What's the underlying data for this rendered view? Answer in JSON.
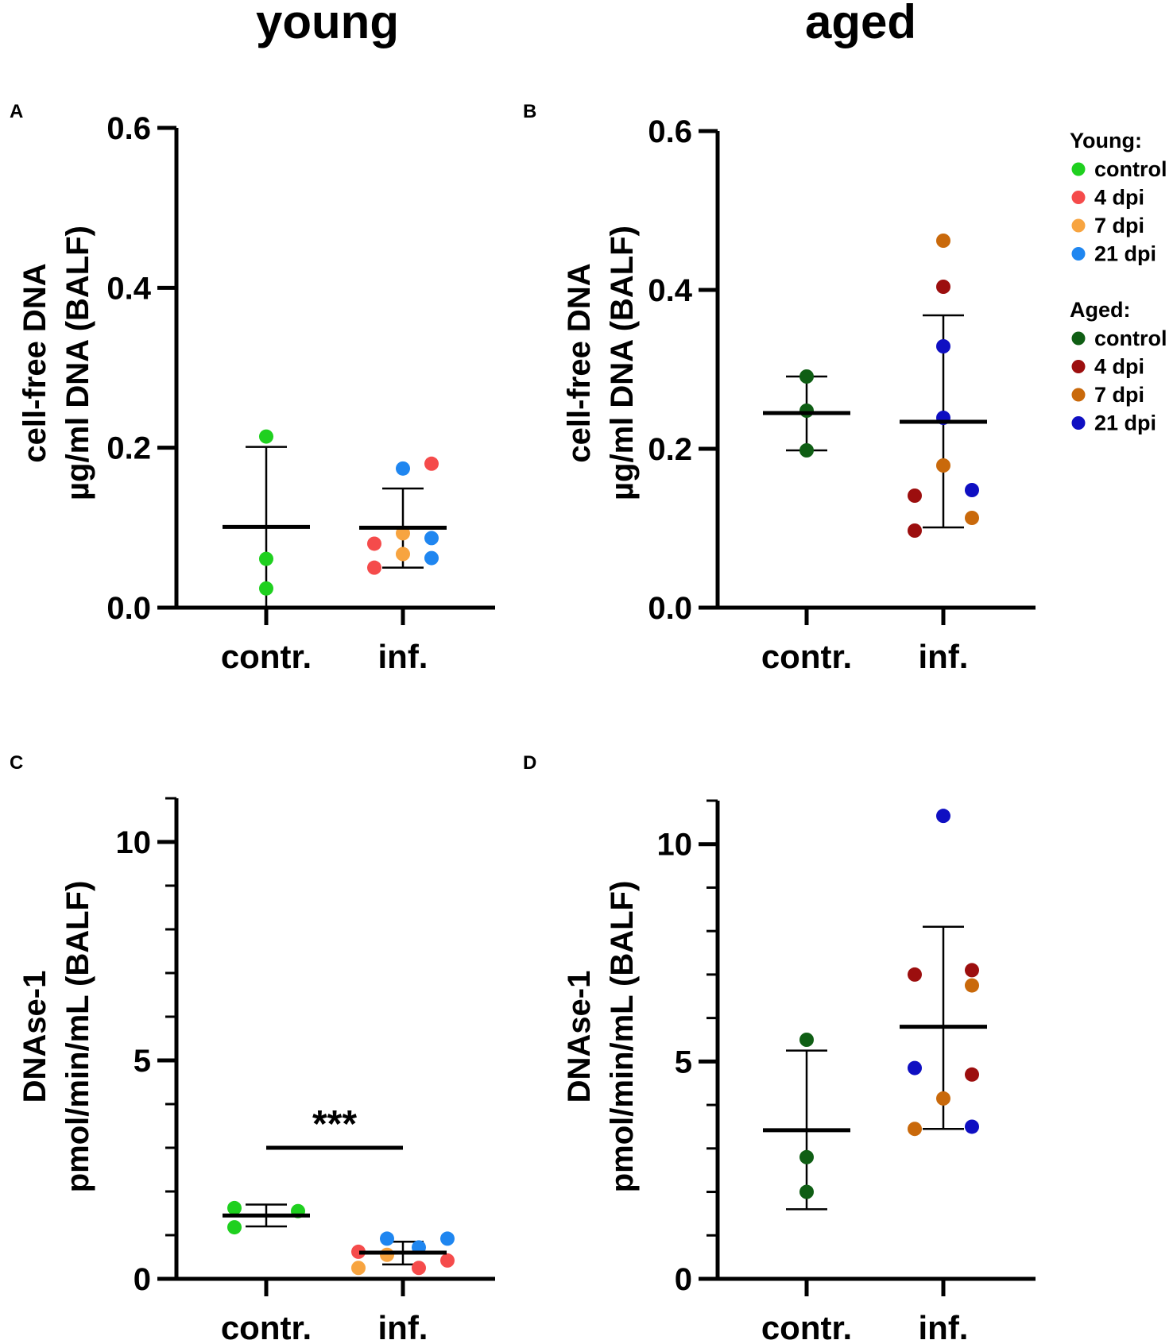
{
  "column_titles": {
    "young": "young",
    "aged": "aged"
  },
  "colors": {
    "young_control": "#1fd01f",
    "young_4dpi": "#f54b4b",
    "young_7dpi": "#f7a440",
    "young_21dpi": "#1f86f0",
    "aged_control": "#0f5e14",
    "aged_4dpi": "#9c0e0e",
    "aged_7dpi": "#c9690b",
    "aged_21dpi": "#0f0fc2",
    "axis": "#000000"
  },
  "legend": {
    "young_title": "Young:",
    "young_items": [
      {
        "label": "control",
        "color_key": "young_control"
      },
      {
        "label": "4 dpi",
        "color_key": "young_4dpi"
      },
      {
        "label": "7 dpi",
        "color_key": "young_7dpi"
      },
      {
        "label": "21 dpi",
        "color_key": "young_21dpi"
      }
    ],
    "aged_title": "Aged:",
    "aged_items": [
      {
        "label": "control",
        "color_key": "aged_control"
      },
      {
        "label": "4 dpi",
        "color_key": "aged_4dpi"
      },
      {
        "label": "7 dpi",
        "color_key": "aged_7dpi"
      },
      {
        "label": "21 dpi",
        "color_key": "aged_21dpi"
      }
    ]
  },
  "chart_data": [
    {
      "panel": "A",
      "type": "scatter",
      "ylabel_line1": "cell-free DNA",
      "ylabel_line2": "µg/ml DNA (BALF)",
      "ylim": [
        0,
        0.6
      ],
      "yticks": [
        0.0,
        0.2,
        0.4,
        0.6
      ],
      "tick_labels": [
        "0.0",
        "0.2",
        "0.4",
        "0.6"
      ],
      "minor_ticks": false,
      "categories": [
        "contr.",
        "inf."
      ],
      "groups": [
        {
          "category": "contr.",
          "mean": 0.101,
          "sd_low": 0.0,
          "sd_high": 0.201,
          "points": [
            {
              "y": 0.214,
              "dx": 0,
              "color_key": "young_control"
            },
            {
              "y": 0.061,
              "dx": 0,
              "color_key": "young_control"
            },
            {
              "y": 0.024,
              "dx": 0,
              "color_key": "young_control"
            }
          ]
        },
        {
          "category": "inf.",
          "mean": 0.1,
          "sd_low": 0.05,
          "sd_high": 0.149,
          "points": [
            {
              "y": 0.174,
              "dx": 0,
              "color_key": "young_21dpi"
            },
            {
              "y": 0.18,
              "dx": 1,
              "color_key": "young_4dpi"
            },
            {
              "y": 0.08,
              "dx": -1,
              "color_key": "young_4dpi"
            },
            {
              "y": 0.093,
              "dx": 0,
              "color_key": "young_7dpi"
            },
            {
              "y": 0.087,
              "dx": 1,
              "color_key": "young_21dpi"
            },
            {
              "y": 0.067,
              "dx": 0,
              "color_key": "young_7dpi"
            },
            {
              "y": 0.05,
              "dx": -1,
              "color_key": "young_4dpi"
            },
            {
              "y": 0.062,
              "dx": 1,
              "color_key": "young_21dpi"
            }
          ]
        }
      ],
      "significance": null
    },
    {
      "panel": "B",
      "type": "scatter",
      "ylabel_line1": "cell-free DNA",
      "ylabel_line2": "µg/ml DNA (BALF)",
      "ylim": [
        0,
        0.6
      ],
      "yticks": [
        0.0,
        0.2,
        0.4,
        0.6
      ],
      "tick_labels": [
        "0.0",
        "0.2",
        "0.4",
        "0.6"
      ],
      "minor_ticks": false,
      "categories": [
        "contr.",
        "inf."
      ],
      "groups": [
        {
          "category": "contr.",
          "mean": 0.245,
          "sd_low": 0.198,
          "sd_high": 0.291,
          "points": [
            {
              "y": 0.291,
              "dx": 0,
              "color_key": "aged_control"
            },
            {
              "y": 0.248,
              "dx": 0,
              "color_key": "aged_control"
            },
            {
              "y": 0.198,
              "dx": 0,
              "color_key": "aged_control"
            }
          ]
        },
        {
          "category": "inf.",
          "mean": 0.234,
          "sd_low": 0.101,
          "sd_high": 0.368,
          "points": [
            {
              "y": 0.462,
              "dx": 0,
              "color_key": "aged_7dpi"
            },
            {
              "y": 0.404,
              "dx": 0,
              "color_key": "aged_4dpi"
            },
            {
              "y": 0.329,
              "dx": 0,
              "color_key": "aged_21dpi"
            },
            {
              "y": 0.239,
              "dx": 0,
              "color_key": "aged_21dpi"
            },
            {
              "y": 0.179,
              "dx": 0,
              "color_key": "aged_7dpi"
            },
            {
              "y": 0.148,
              "dx": 1,
              "color_key": "aged_21dpi"
            },
            {
              "y": 0.141,
              "dx": -1,
              "color_key": "aged_4dpi"
            },
            {
              "y": 0.113,
              "dx": 1,
              "color_key": "aged_7dpi"
            },
            {
              "y": 0.097,
              "dx": -1,
              "color_key": "aged_4dpi"
            }
          ]
        }
      ],
      "significance": null
    },
    {
      "panel": "C",
      "type": "scatter",
      "ylabel_line1": "DNAse-1",
      "ylabel_line2": "pmol/min/mL (BALF)",
      "ylim": [
        0,
        11
      ],
      "yticks": [
        0,
        5,
        10
      ],
      "tick_labels": [
        "0",
        "5",
        "10"
      ],
      "minor_ticks": true,
      "categories": [
        "contr.",
        "inf."
      ],
      "groups": [
        {
          "category": "contr.",
          "mean": 1.45,
          "sd_low": 1.2,
          "sd_high": 1.7,
          "points": [
            {
              "y": 1.62,
              "dx": -1,
              "color_key": "young_control"
            },
            {
              "y": 1.55,
              "dx": 1,
              "color_key": "young_control"
            },
            {
              "y": 1.18,
              "dx": -1,
              "color_key": "young_control"
            }
          ]
        },
        {
          "category": "inf.",
          "mean": 0.6,
          "sd_low": 0.33,
          "sd_high": 0.85,
          "points": [
            {
              "y": 0.92,
              "dx": -0.5,
              "color_key": "young_21dpi"
            },
            {
              "y": 0.92,
              "dx": 1.4,
              "color_key": "young_21dpi"
            },
            {
              "y": 0.72,
              "dx": 0.5,
              "color_key": "young_21dpi"
            },
            {
              "y": 0.62,
              "dx": -1.4,
              "color_key": "young_4dpi"
            },
            {
              "y": 0.55,
              "dx": -0.5,
              "color_key": "young_7dpi"
            },
            {
              "y": 0.42,
              "dx": 1.4,
              "color_key": "young_4dpi"
            },
            {
              "y": 0.25,
              "dx": -1.4,
              "color_key": "young_7dpi"
            },
            {
              "y": 0.25,
              "dx": 0.5,
              "color_key": "young_4dpi"
            }
          ]
        }
      ],
      "significance": {
        "label": "***",
        "y": 3.0
      }
    },
    {
      "panel": "D",
      "type": "scatter",
      "ylabel_line1": "DNAse-1",
      "ylabel_line2": "pmol/min/mL (BALF)",
      "ylim": [
        0,
        11
      ],
      "yticks": [
        0,
        5,
        10
      ],
      "tick_labels": [
        "0",
        "5",
        "10"
      ],
      "minor_ticks": true,
      "categories": [
        "contr.",
        "inf."
      ],
      "groups": [
        {
          "category": "contr.",
          "mean": 3.42,
          "sd_low": 1.6,
          "sd_high": 5.25,
          "points": [
            {
              "y": 5.5,
              "dx": 0,
              "color_key": "aged_control"
            },
            {
              "y": 2.8,
              "dx": 0,
              "color_key": "aged_control"
            },
            {
              "y": 2.0,
              "dx": 0,
              "color_key": "aged_control"
            }
          ]
        },
        {
          "category": "inf.",
          "mean": 5.8,
          "sd_low": 3.45,
          "sd_high": 8.1,
          "points": [
            {
              "y": 10.65,
              "dx": 0,
              "color_key": "aged_21dpi"
            },
            {
              "y": 7.0,
              "dx": -1,
              "color_key": "aged_4dpi"
            },
            {
              "y": 7.1,
              "dx": 1,
              "color_key": "aged_4dpi"
            },
            {
              "y": 6.75,
              "dx": 1,
              "color_key": "aged_7dpi"
            },
            {
              "y": 4.85,
              "dx": -1,
              "color_key": "aged_21dpi"
            },
            {
              "y": 4.7,
              "dx": 1,
              "color_key": "aged_4dpi"
            },
            {
              "y": 4.15,
              "dx": 0,
              "color_key": "aged_7dpi"
            },
            {
              "y": 3.45,
              "dx": -1,
              "color_key": "aged_7dpi"
            },
            {
              "y": 3.5,
              "dx": 1,
              "color_key": "aged_21dpi"
            }
          ]
        }
      ],
      "significance": null
    }
  ]
}
